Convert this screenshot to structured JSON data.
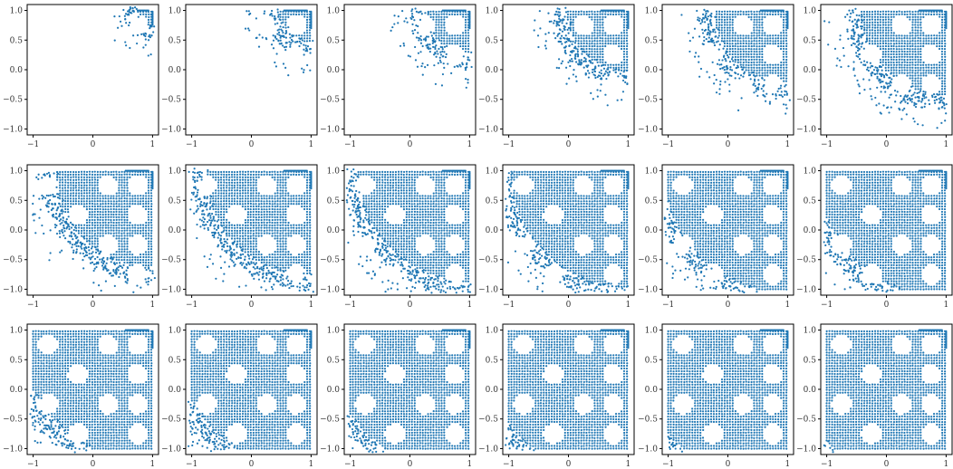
{
  "figure": {
    "rows": 3,
    "cols": 6,
    "marker_color": "#1f77b4"
  },
  "chart_data": {
    "type": "scatter",
    "panel_count": 18,
    "xlim": [
      -1.1,
      1.1
    ],
    "ylim": [
      -1.1,
      1.1
    ],
    "xticks": [
      -1,
      0,
      1
    ],
    "xtick_labels": [
      "−1",
      "0",
      "1"
    ],
    "yticks": [
      -1.0,
      -0.5,
      0.0,
      0.5,
      1.0
    ],
    "ytick_labels": [
      "−1.0",
      "−0.5",
      "0.0",
      "0.5",
      "1.0"
    ],
    "grid": false,
    "legend": "none",
    "point_set": "lattice of points in the square [-1,1]x[-1,1] with circular holes centered on a 0.5-spaced diagonal lattice; successive panels fill the domain from the upper-right corner toward the lower-left",
    "holes": {
      "centers": [
        [
          -0.75,
          0.75
        ],
        [
          -0.25,
          0.25
        ],
        [
          0.25,
          0.75
        ],
        [
          0.75,
          0.25
        ],
        [
          -0.75,
          -0.25
        ],
        [
          -0.25,
          -0.75
        ],
        [
          0.25,
          -0.25
        ],
        [
          0.75,
          -0.75
        ],
        [
          0.25,
          1.25
        ],
        [
          0.75,
          0.75
        ],
        [
          -0.25,
          1.25
        ],
        [
          0.75,
          -0.25
        ]
      ],
      "radius": 0.17
    },
    "panels": [
      {
        "panel": 1,
        "coverage_radius": 0.5
      },
      {
        "panel": 2,
        "coverage_radius": 0.78
      },
      {
        "panel": 3,
        "coverage_radius": 0.98
      },
      {
        "panel": 4,
        "coverage_radius": 1.28
      },
      {
        "panel": 5,
        "coverage_radius": 1.48
      },
      {
        "panel": 6,
        "coverage_radius": 1.68
      },
      {
        "panel": 7,
        "coverage_radius": 1.88
      },
      {
        "panel": 8,
        "coverage_radius": 2.02
      },
      {
        "panel": 9,
        "coverage_radius": 2.12
      },
      {
        "panel": 10,
        "coverage_radius": 2.22
      },
      {
        "panel": 11,
        "coverage_radius": 2.32
      },
      {
        "panel": 12,
        "coverage_radius": 2.4
      },
      {
        "panel": 13,
        "coverage_radius": 2.5
      },
      {
        "panel": 14,
        "coverage_radius": 2.6
      },
      {
        "panel": 15,
        "coverage_radius": 2.7
      },
      {
        "panel": 16,
        "coverage_radius": 2.8
      },
      {
        "panel": 17,
        "coverage_radius": 2.9
      },
      {
        "panel": 18,
        "coverage_radius": 3.0
      }
    ]
  }
}
